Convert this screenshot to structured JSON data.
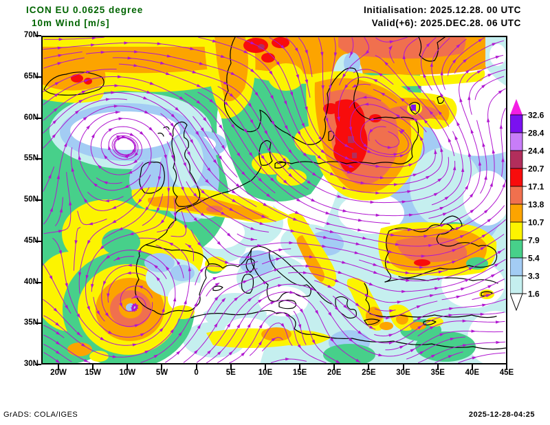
{
  "header": {
    "model_title": "ICON EU 0.0625 degree",
    "variable_title": "10m Wind [m/s]",
    "init_label": "Initialisation: 2025.12.28. 00 UTC",
    "valid_label": "Valid(+6): 2025.DEC.28. 06 UTC",
    "title_color": "#006400"
  },
  "axes": {
    "lat_labels": [
      "70N",
      "65N",
      "60N",
      "55N",
      "50N",
      "45N",
      "40N",
      "35N",
      "30N"
    ],
    "lon_labels": [
      "20W",
      "15W",
      "10W",
      "5W",
      "0",
      "5E",
      "10E",
      "15E",
      "20E",
      "25E",
      "30E",
      "35E",
      "40E",
      "45E"
    ]
  },
  "legend": {
    "over_arrow_color": "#f41ee4",
    "levels": [
      {
        "value": "32.6",
        "color": "#7a11f0"
      },
      {
        "value": "28.4",
        "color": "#c87df8"
      },
      {
        "value": "24.4",
        "color": "#b22e5c"
      },
      {
        "value": "20.7",
        "color": "#f80c0c"
      },
      {
        "value": "17.1",
        "color": "#f0704e"
      },
      {
        "value": "13.8",
        "color": "#fca400"
      },
      {
        "value": "10.7",
        "color": "#fcf400"
      },
      {
        "value": "7.9",
        "color": "#47d08a"
      },
      {
        "value": "5.4",
        "color": "#a3ccf4"
      },
      {
        "value": "3.3",
        "color": "#c5efef"
      },
      {
        "value": "1.6",
        "color": "#ffffff"
      }
    ]
  },
  "footer": {
    "left_credit": "GrADS: COLA/IGES",
    "right_timestamp": "2025-12-28-04:25"
  },
  "map_colors": {
    "streamline": "#b016d0",
    "coastline": "#000000",
    "background": "#ffffff",
    "frame": "#000000"
  },
  "chart_data": {
    "type": "heatmap",
    "title": "ICON EU 0.0625 degree — 10m Wind [m/s]",
    "init_time": "2025.12.28. 00 UTC",
    "valid_time": "2025.DEC.28. 06 UTC (+6h)",
    "extent": {
      "lon_min": -22.5,
      "lon_max": 45,
      "lat_min": 30,
      "lat_max": 70
    },
    "lat_ticks_deg": [
      70,
      65,
      60,
      55,
      50,
      45,
      40,
      35,
      30
    ],
    "lon_ticks_deg": [
      -20,
      -15,
      -10,
      -5,
      0,
      5,
      10,
      15,
      20,
      25,
      30,
      35,
      40,
      45
    ],
    "colorbar_levels_mps": [
      1.6,
      3.3,
      5.4,
      7.9,
      10.7,
      13.8,
      17.1,
      20.7,
      24.4,
      28.4,
      32.6
    ],
    "legend_position": "right",
    "notable_features": [
      "Severe storm over Baltic Sea ~58N 20E, winds 17-24 m/s (red core)",
      "Cyclone spiral off SW Iberia ~37N 10W, winds 11-17 m/s (orange ring, calm eye)",
      "Strong NW flow band across Norwegian Sea / Arctic edge 10-21 m/s",
      "Calm anticyclonic area west of Scotland ~60N 15W (below 1.6 m/s core)",
      "Cyclonic spiral over W Russia ~57N 36E, light winds 2-5 m/s",
      "Strong easterly winds over Black Sea 11-17 m/s",
      "Bora-like yellow wind streak along Adriatic",
      "Streamlines drawn in magenta over shaded wind speed field"
    ]
  }
}
